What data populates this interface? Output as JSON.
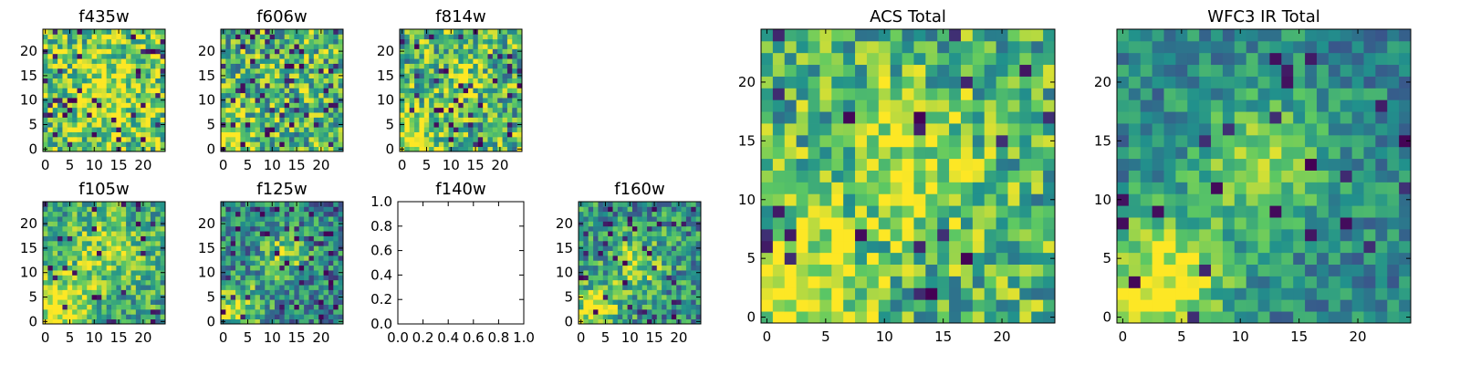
{
  "figure": {
    "background": "#ffffff"
  },
  "chart_data": [
    {
      "id": "f435w",
      "type": "heatmap",
      "title": "f435w",
      "grid_size": 25,
      "xlim": [
        -0.5,
        24.5
      ],
      "ylim": [
        -0.5,
        24.5
      ],
      "xticks": [
        "0",
        "5",
        "10",
        "15",
        "20"
      ],
      "yticks": [
        "0",
        "5",
        "10",
        "15",
        "20"
      ],
      "colormap": "viridis",
      "texture": {
        "seed": 11,
        "base": 0.75,
        "noise": 0.35,
        "dark_frac": 0.07,
        "blobs": [
          [
            13,
            11,
            0.2,
            5
          ]
        ]
      }
    },
    {
      "id": "f606w",
      "type": "heatmap",
      "title": "f606w",
      "grid_size": 25,
      "xlim": [
        -0.5,
        24.5
      ],
      "ylim": [
        -0.5,
        24.5
      ],
      "xticks": [
        "0",
        "5",
        "10",
        "15",
        "20"
      ],
      "yticks": [
        "0",
        "5",
        "10",
        "15",
        "20"
      ],
      "colormap": "viridis",
      "texture": {
        "seed": 23,
        "base": 0.66,
        "noise": 0.35,
        "dark_frac": 0.07,
        "blobs": [
          [
            2,
            2,
            0.4,
            3
          ]
        ]
      }
    },
    {
      "id": "f814w",
      "type": "heatmap",
      "title": "f814w",
      "grid_size": 25,
      "xlim": [
        -0.5,
        24.5
      ],
      "ylim": [
        -0.5,
        24.5
      ],
      "xticks": [
        "0",
        "5",
        "10",
        "15",
        "20"
      ],
      "yticks": [
        "0",
        "5",
        "10",
        "15",
        "20"
      ],
      "colormap": "viridis",
      "texture": {
        "seed": 37,
        "base": 0.66,
        "noise": 0.35,
        "dark_frac": 0.06,
        "blobs": [
          [
            2,
            2,
            0.4,
            3.5
          ],
          [
            12,
            14,
            0.2,
            3
          ]
        ]
      }
    },
    {
      "id": "f105w",
      "type": "heatmap",
      "title": "f105w",
      "grid_size": 25,
      "xlim": [
        -0.5,
        24.5
      ],
      "ylim": [
        -0.5,
        24.5
      ],
      "xticks": [
        "0",
        "5",
        "10",
        "15",
        "20"
      ],
      "yticks": [
        "0",
        "5",
        "10",
        "15",
        "20"
      ],
      "colormap": "viridis",
      "texture": {
        "seed": 41,
        "base": 0.6,
        "noise": 0.28,
        "dark_frac": 0.04,
        "blobs": [
          [
            3,
            3,
            0.45,
            4
          ],
          [
            12,
            14,
            0.25,
            5
          ]
        ]
      }
    },
    {
      "id": "f125w",
      "type": "heatmap",
      "title": "f125w",
      "grid_size": 25,
      "xlim": [
        -0.5,
        24.5
      ],
      "ylim": [
        -0.5,
        24.5
      ],
      "xticks": [
        "0",
        "5",
        "10",
        "15",
        "20"
      ],
      "yticks": [
        "0",
        "5",
        "10",
        "15",
        "20"
      ],
      "colormap": "viridis",
      "texture": {
        "seed": 53,
        "base": 0.45,
        "noise": 0.3,
        "dark_frac": 0.06,
        "blobs": [
          [
            3,
            3,
            0.45,
            3.5
          ],
          [
            12,
            13,
            0.35,
            3.5
          ]
        ]
      }
    },
    {
      "id": "f140w",
      "type": "empty",
      "title": "f140w",
      "xlim": [
        0,
        1
      ],
      "ylim": [
        0,
        1
      ],
      "xticks": [
        "0.0",
        "0.2",
        "0.4",
        "0.6",
        "0.8",
        "1.0"
      ],
      "yticks": [
        "0.0",
        "0.2",
        "0.4",
        "0.6",
        "0.8",
        "1.0"
      ]
    },
    {
      "id": "f160w",
      "type": "heatmap",
      "title": "f160w",
      "grid_size": 25,
      "xlim": [
        -0.5,
        24.5
      ],
      "ylim": [
        -0.5,
        24.5
      ],
      "xticks": [
        "0",
        "5",
        "10",
        "15",
        "20"
      ],
      "yticks": [
        "0",
        "5",
        "10",
        "15",
        "20"
      ],
      "colormap": "viridis",
      "texture": {
        "seed": 67,
        "base": 0.5,
        "noise": 0.3,
        "dark_frac": 0.05,
        "blobs": [
          [
            3,
            3,
            0.45,
            3.5
          ],
          [
            12,
            12,
            0.35,
            4
          ]
        ]
      }
    },
    {
      "id": "acs_total",
      "type": "heatmap",
      "title": "ACS Total",
      "grid_size": 25,
      "xlim": [
        -0.5,
        24.5
      ],
      "ylim": [
        -0.5,
        24.5
      ],
      "xticks": [
        "0",
        "5",
        "10",
        "15",
        "20"
      ],
      "yticks": [
        "0",
        "5",
        "10",
        "15",
        "20"
      ],
      "colormap": "viridis",
      "texture": {
        "seed": 79,
        "base": 0.66,
        "noise": 0.3,
        "dark_frac": 0.05,
        "blobs": [
          [
            2.5,
            2.5,
            0.45,
            3.5
          ],
          [
            12,
            13,
            0.25,
            4
          ]
        ]
      }
    },
    {
      "id": "wfc3_ir_total",
      "type": "heatmap",
      "title": "WFC3 IR Total",
      "grid_size": 25,
      "xlim": [
        -0.5,
        24.5
      ],
      "ylim": [
        -0.5,
        24.5
      ],
      "xticks": [
        "0",
        "5",
        "10",
        "15",
        "20"
      ],
      "yticks": [
        "0",
        "5",
        "10",
        "15",
        "20"
      ],
      "colormap": "viridis",
      "texture": {
        "seed": 97,
        "base": 0.46,
        "noise": 0.2,
        "dark_frac": 0.04,
        "blobs": [
          [
            3,
            3,
            0.55,
            4
          ],
          [
            12,
            13,
            0.4,
            4
          ]
        ]
      }
    }
  ]
}
